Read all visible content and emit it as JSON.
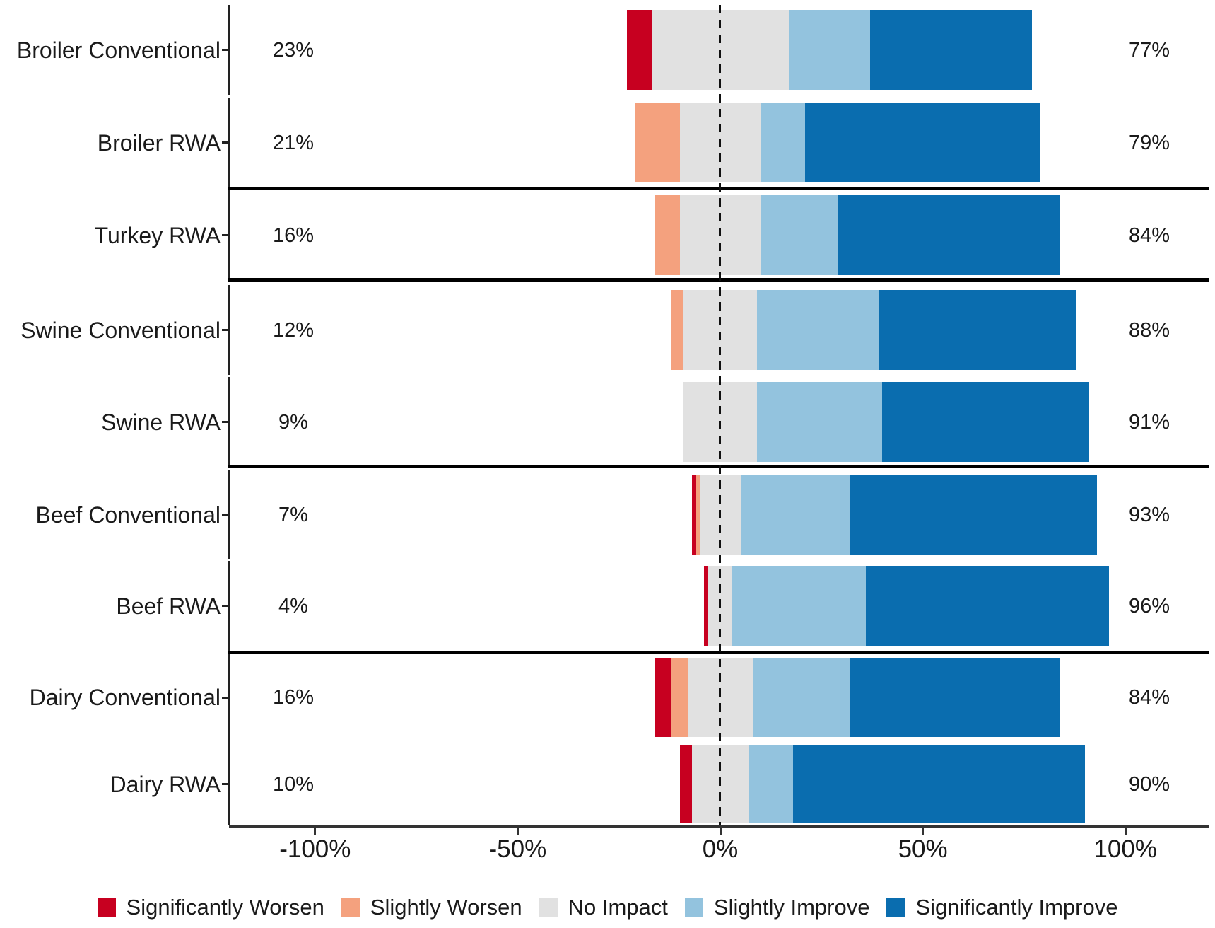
{
  "chart_data": {
    "type": "bar",
    "variant": "horizontal-diverging-stacked-likert",
    "background": "#ffffff",
    "categories": [
      "Broiler Conventional",
      "Broiler RWA",
      "Turkey RWA",
      "Swine Conventional",
      "Swine RWA",
      "Beef Conventional",
      "Beef RWA",
      "Dairy Conventional",
      "Dairy RWA"
    ],
    "group_sizes": [
      2,
      1,
      2,
      2,
      2
    ],
    "series": [
      {
        "name": "Significantly Worsen",
        "color": "#C70020",
        "values": [
          6,
          0,
          0,
          0,
          0,
          1,
          1,
          4,
          3
        ]
      },
      {
        "name": "Slightly Worsen",
        "color": "#F4A17E",
        "values": [
          0,
          11,
          6,
          3,
          0,
          1,
          0,
          4,
          0
        ]
      },
      {
        "name": "No Impact",
        "color": "#E1E1E1",
        "values": [
          34,
          20,
          20,
          18,
          18,
          10,
          6,
          16,
          14
        ]
      },
      {
        "name": "Slightly Improve",
        "color": "#93C3DE",
        "values": [
          20,
          11,
          19,
          30,
          31,
          27,
          33,
          24,
          11
        ]
      },
      {
        "name": "Significantly Improve",
        "color": "#0A6DAF",
        "values": [
          40,
          58,
          55,
          49,
          51,
          61,
          60,
          52,
          72
        ]
      }
    ],
    "no_impact_centered_on_zero": true,
    "left_labels": [
      "23%",
      "21%",
      "16%",
      "12%",
      "9%",
      "7%",
      "4%",
      "16%",
      "10%"
    ],
    "right_labels": [
      "77%",
      "79%",
      "84%",
      "88%",
      "91%",
      "93%",
      "96%",
      "84%",
      "90%"
    ],
    "x_ticks": [
      "-100%",
      "-50%",
      "0%",
      "50%",
      "100%"
    ],
    "x_tick_values": [
      -100,
      -50,
      0,
      50,
      100
    ],
    "xlim": [
      -121,
      121
    ],
    "zero_reference_line": "dashed",
    "grid": false,
    "legend_position": "bottom",
    "legend": [
      {
        "label": "Significantly Worsen",
        "color": "#C70020"
      },
      {
        "label": "Slightly Worsen",
        "color": "#F4A17E"
      },
      {
        "label": "No Impact",
        "color": "#E1E1E1"
      },
      {
        "label": "Slightly Improve",
        "color": "#93C3DE"
      },
      {
        "label": "Significantly Improve",
        "color": "#0A6DAF"
      }
    ]
  }
}
